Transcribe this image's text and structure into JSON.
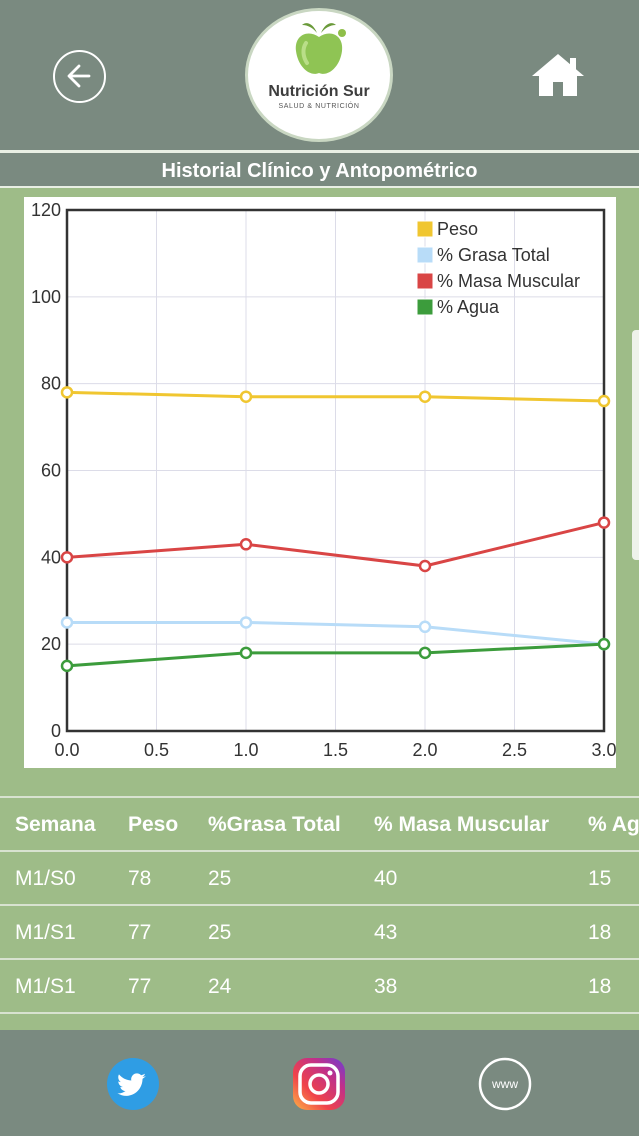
{
  "header": {
    "back_icon": "arrow-left-circle-icon",
    "home_icon": "home-icon",
    "logo": {
      "name": "Nutrición Sur",
      "subtitle": "SALUD & NUTRICIÓN"
    }
  },
  "page_title": "Historial Clínico y Antopométrico",
  "chart_data": {
    "type": "line",
    "x": [
      0,
      1,
      2,
      3
    ],
    "xlim": [
      0,
      3
    ],
    "ylim": [
      0,
      120
    ],
    "x_ticks": [
      "0.0",
      "0.5",
      "1.0",
      "1.5",
      "2.0",
      "2.5",
      "3.0"
    ],
    "y_ticks": [
      "0",
      "20",
      "40",
      "60",
      "80",
      "100",
      "120"
    ],
    "grid": true,
    "legend_position": "top-right",
    "series": [
      {
        "name": "Peso",
        "color": "#f0c630",
        "values": [
          78,
          77,
          77,
          76
        ]
      },
      {
        "name": "% Grasa Total",
        "color": "#b8dcf8",
        "values": [
          25,
          25,
          24,
          20
        ]
      },
      {
        "name": "% Masa Muscular",
        "color": "#d94545",
        "values": [
          40,
          43,
          38,
          48
        ]
      },
      {
        "name": "% Agua",
        "color": "#3c9c3c",
        "values": [
          15,
          18,
          18,
          20
        ]
      }
    ]
  },
  "table": {
    "headers": [
      "Semana",
      "Peso",
      "%Grasa Total",
      "% Masa Muscular",
      "% Ag"
    ],
    "rows": [
      [
        "M1/S0",
        "78",
        "25",
        "40",
        "15"
      ],
      [
        "M1/S1",
        "77",
        "25",
        "43",
        "18"
      ],
      [
        "M1/S1",
        "77",
        "24",
        "38",
        "18"
      ]
    ]
  },
  "footer": {
    "twitter_icon": "twitter-icon",
    "instagram_icon": "instagram-icon",
    "web_icon": "www-icon",
    "web_label": "www"
  }
}
